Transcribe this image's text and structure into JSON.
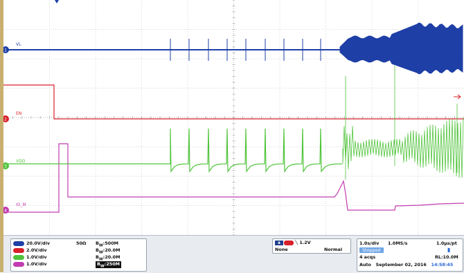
{
  "channels": [
    {
      "id": "1",
      "label": "VL",
      "color": "#1e3fa6",
      "scale": "20.0V/div",
      "termination": "50Ω",
      "bw": "500M"
    },
    {
      "id": "2",
      "label": "EN",
      "color": "#d8202a",
      "scale": "2.0V/div",
      "termination": "",
      "bw": "20.0M"
    },
    {
      "id": "3",
      "label": "VDD",
      "color": "#4fc43a",
      "scale": "1.0V/div",
      "termination": "",
      "bw": "20.0M"
    },
    {
      "id": "4",
      "label": "IO_M",
      "color": "#c23cb0",
      "scale": "1.0V/div",
      "termination": "",
      "bw": "250M"
    }
  ],
  "bw_prefix": "B",
  "bw_sub": "W",
  "bw_sep": ":",
  "trigger": {
    "channel": "2",
    "slope": "falling",
    "level": "1.2V",
    "coupling": "None",
    "mode": "Normal",
    "icon": "trigger-slope-icon"
  },
  "timebase": {
    "time_div": "1.0s/div",
    "sample_rate": "1.0MS/s",
    "resolution": "1.0μs/pt",
    "state": "Stopped",
    "acqs": "4 acqs",
    "record_length": "RL:10.0M",
    "mode": "Auto",
    "date": "September 02, 2016",
    "time": "14:58:45"
  },
  "colors": {
    "grid": "#c9c9c9",
    "center_grid": "#9a9a9a",
    "ch1": "#1e3fa6",
    "ch2": "#d8202a",
    "ch3": "#4fc43a",
    "ch4": "#c23cb0",
    "status_bg": "#e8ebf0"
  }
}
